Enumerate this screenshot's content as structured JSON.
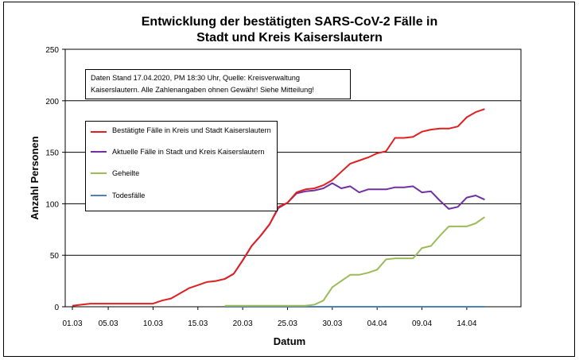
{
  "chart_data": {
    "type": "line",
    "title_line1": "Entwicklung der bestätigten SARS-CoV-2 Fälle in",
    "title_line2": "Stadt und Kreis Kaiserslautern",
    "xlabel": "Datum",
    "ylabel": "Anzahl Personen",
    "ylim": [
      0,
      250
    ],
    "yticks": [
      0,
      50,
      100,
      150,
      200,
      250
    ],
    "x_start_day": "01.03",
    "xtick_labels": [
      "01.03",
      "05.03",
      "10.03",
      "15.03",
      "20.03",
      "25.03",
      "30.03",
      "04.04",
      "09.04",
      "14.04"
    ],
    "grid": "horizontal",
    "note": "Daten Stand 17.04.2020, PM 18:30 Uhr, Quelle: Kreisverwaltung Kaiserslautern. Alle Zahlenangaben ohnen Gewähr! Siehe Mitteilung!",
    "legend_placement": "upper-left",
    "series": [
      {
        "name": "Bestätigte Fälle in Kreis und Stadt Kaiserslautern",
        "color": "#e02020",
        "x": [
          "01.03",
          "02.03",
          "03.03",
          "04.03",
          "05.03",
          "06.03",
          "07.03",
          "08.03",
          "09.03",
          "10.03",
          "11.03",
          "12.03",
          "13.03",
          "14.03",
          "15.03",
          "16.03",
          "17.03",
          "18.03",
          "19.03",
          "20.03",
          "21.03",
          "22.03",
          "23.03",
          "24.03",
          "25.03",
          "26.03",
          "27.03",
          "28.03",
          "29.03",
          "30.03",
          "31.03",
          "01.04",
          "02.04",
          "03.04",
          "04.04",
          "05.04",
          "06.04",
          "07.04",
          "08.04",
          "09.04",
          "10.04",
          "11.04",
          "12.04",
          "13.04",
          "14.04",
          "15.04",
          "16.04"
        ],
        "values": [
          1,
          2,
          3,
          3,
          3,
          3,
          3,
          3,
          3,
          3,
          6,
          8,
          13,
          18,
          21,
          24,
          25,
          27,
          32,
          45,
          59,
          69,
          80,
          97,
          101,
          111,
          114,
          115,
          118,
          123,
          131,
          139,
          142,
          145,
          149,
          151,
          164,
          164,
          165,
          170,
          172,
          173,
          173,
          175,
          184,
          189,
          192
        ]
      },
      {
        "name": "Aktuelle Fälle in Stadt und Kreis Kaiserslautern",
        "color": "#7030a0",
        "x": [
          "18.03",
          "19.03",
          "20.03",
          "21.03",
          "22.03",
          "23.03",
          "24.03",
          "25.03",
          "26.03",
          "27.03",
          "28.03",
          "29.03",
          "30.03",
          "31.03",
          "01.04",
          "02.04",
          "03.04",
          "04.04",
          "05.04",
          "06.04",
          "07.04",
          "08.04",
          "09.04",
          "10.04",
          "11.04",
          "12.04",
          "13.04",
          "14.04",
          "15.04",
          "16.04"
        ],
        "values": [
          27,
          32,
          45,
          59,
          69,
          80,
          96,
          101,
          110,
          112,
          113,
          115,
          120,
          115,
          117,
          111,
          114,
          114,
          114,
          116,
          116,
          117,
          111,
          112,
          103,
          95,
          97,
          106,
          108,
          104
        ]
      },
      {
        "name": "Geheilte",
        "color": "#9bbb59",
        "x": [
          "18.03",
          "19.03",
          "20.03",
          "21.03",
          "22.03",
          "23.03",
          "24.03",
          "25.03",
          "26.03",
          "27.03",
          "28.03",
          "29.03",
          "30.03",
          "31.03",
          "01.04",
          "02.04",
          "03.04",
          "04.04",
          "05.04",
          "06.04",
          "07.04",
          "08.04",
          "09.04",
          "10.04",
          "11.04",
          "12.04",
          "13.04",
          "14.04",
          "15.04",
          "16.04"
        ],
        "values": [
          1,
          1,
          1,
          1,
          1,
          1,
          1,
          1,
          1,
          1,
          2,
          6,
          19,
          25,
          31,
          31,
          33,
          36,
          46,
          47,
          47,
          47,
          57,
          59,
          69,
          78,
          78,
          78,
          81,
          87
        ]
      },
      {
        "name": "Todesfälle",
        "color": "#4f81bd",
        "x": [
          "18.03",
          "19.03",
          "20.03",
          "21.03",
          "22.03",
          "23.03",
          "24.03",
          "25.03",
          "26.03",
          "27.03",
          "28.03",
          "29.03",
          "30.03",
          "31.03",
          "01.04",
          "02.04",
          "03.04",
          "04.04",
          "05.04",
          "06.04",
          "07.04",
          "08.04",
          "09.04",
          "10.04",
          "11.04",
          "12.04",
          "13.04",
          "14.04",
          "15.04",
          "16.04"
        ],
        "values": [
          0,
          0,
          0,
          0,
          0,
          0,
          0,
          0,
          0,
          0,
          0,
          0,
          0,
          0,
          0,
          0,
          0,
          0,
          0,
          0,
          0,
          0,
          0,
          0,
          0,
          0,
          0,
          0,
          0,
          0
        ]
      }
    ]
  }
}
